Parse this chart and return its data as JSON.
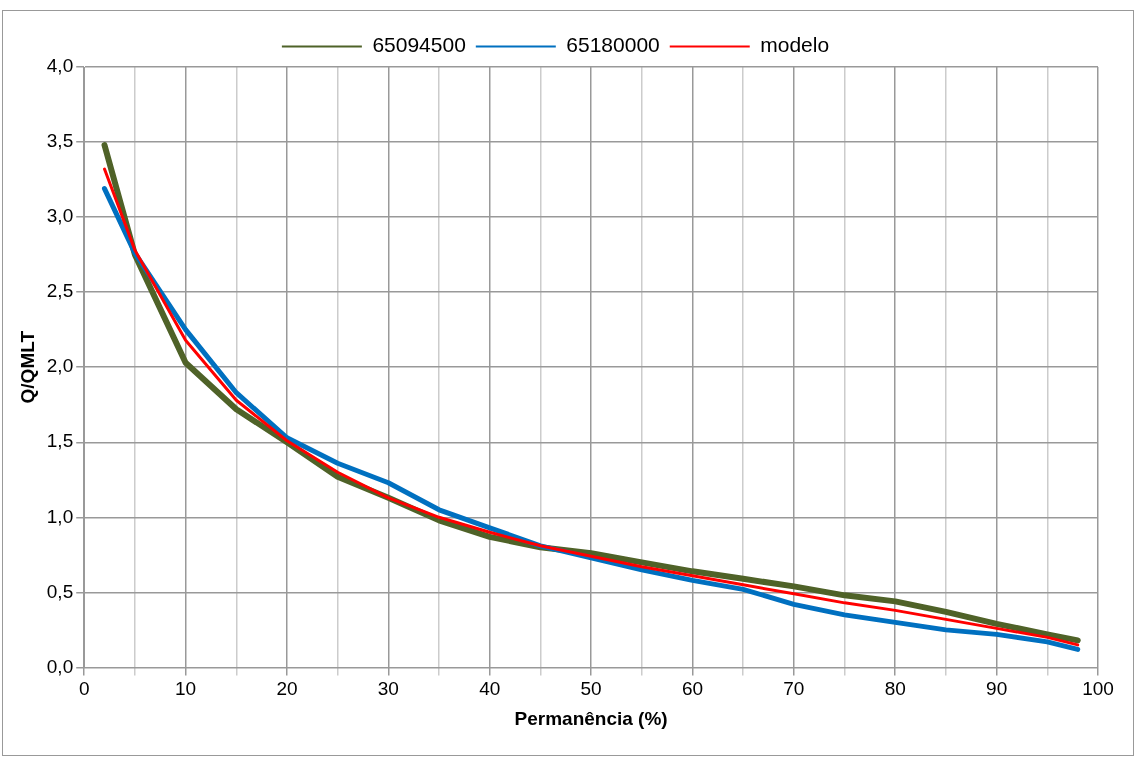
{
  "chart_data": {
    "type": "line",
    "xlabel": "Permanência (%)",
    "ylabel": "Q/QMLT",
    "legend": "top",
    "grid": true,
    "marker": "none",
    "line_style": "solid",
    "x": [
      2,
      5,
      10,
      15,
      20,
      25,
      30,
      35,
      40,
      45,
      50,
      55,
      60,
      65,
      70,
      75,
      80,
      85,
      90,
      95,
      98
    ],
    "xlim": [
      0,
      100
    ],
    "xticks": [
      0,
      {
        "value": 5,
        "label": null
      },
      10,
      {
        "value": 15,
        "label": null
      },
      20,
      {
        "value": 25,
        "label": null
      },
      30,
      {
        "value": 35,
        "label": null
      },
      40,
      {
        "value": 45,
        "label": null
      },
      50,
      {
        "value": 55,
        "label": null
      },
      60,
      {
        "value": 65,
        "label": null
      },
      70,
      {
        "value": 75,
        "label": null
      },
      80,
      {
        "value": 85,
        "label": null
      },
      90,
      {
        "value": 95,
        "label": null
      },
      100
    ],
    "ylim": [
      0,
      4
    ],
    "yticks": [
      {
        "value": 0,
        "label": "0,0"
      },
      {
        "value": 0.5,
        "label": "0,5"
      },
      {
        "value": 1,
        "label": "1,0"
      },
      {
        "value": 1.5,
        "label": "1,5"
      },
      {
        "value": 2,
        "label": "2,0"
      },
      {
        "value": 2.5,
        "label": "2,5"
      },
      {
        "value": 3,
        "label": "3,0"
      },
      {
        "value": 3.5,
        "label": "3,5"
      },
      {
        "value": 4,
        "label": "4,0"
      }
    ],
    "series": [
      {
        "name": "65094500",
        "color": "#4f6228",
        "values": [
          3.48,
          2.75,
          2.03,
          1.72,
          1.5,
          1.27,
          1.13,
          0.98,
          0.87,
          0.8,
          0.76,
          0.7,
          0.64,
          0.59,
          0.54,
          0.48,
          0.44,
          0.37,
          0.29,
          0.22,
          0.18
        ]
      },
      {
        "name": "65180000",
        "color": "#0070c0",
        "values": [
          3.19,
          2.76,
          2.25,
          1.83,
          1.53,
          1.36,
          1.23,
          1.05,
          0.93,
          0.81,
          0.73,
          0.65,
          0.58,
          0.52,
          0.42,
          0.35,
          0.3,
          0.25,
          0.22,
          0.17,
          0.12
        ]
      },
      {
        "name": "modelo",
        "color": "#ff0000",
        "values": [
          3.32,
          2.78,
          2.18,
          1.78,
          1.51,
          1.3,
          1.13,
          1.0,
          0.9,
          0.81,
          0.74,
          0.67,
          0.61,
          0.55,
          0.49,
          0.43,
          0.38,
          0.32,
          0.26,
          0.2,
          0.15
        ]
      }
    ]
  }
}
